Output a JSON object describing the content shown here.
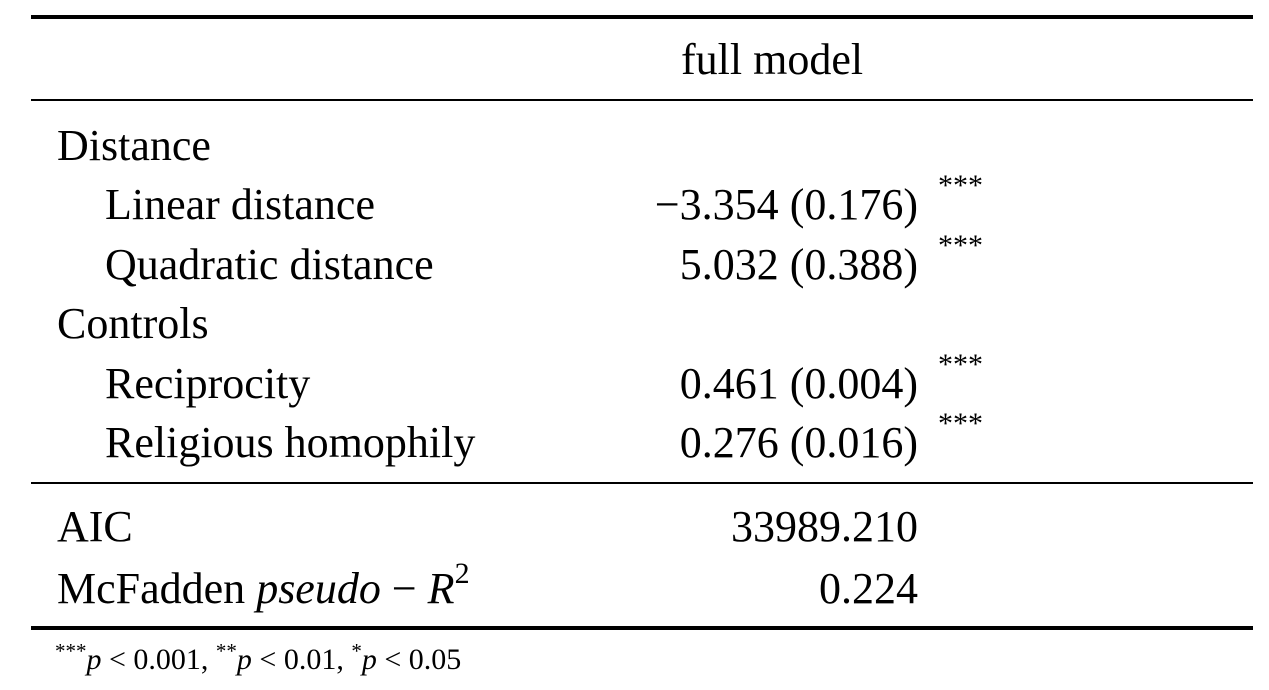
{
  "table": {
    "column_header": "full model",
    "sections": [
      {
        "label": "Distance",
        "rows": [
          {
            "label": "Linear distance",
            "estimate": "−3.354",
            "se": "(0.176)",
            "stars": "***"
          },
          {
            "label": "Quadratic distance",
            "estimate": "5.032",
            "se": "(0.388)",
            "stars": "***"
          }
        ]
      },
      {
        "label": "Controls",
        "rows": [
          {
            "label": "Reciprocity",
            "estimate": "0.461",
            "se": "(0.004)",
            "stars": "***"
          },
          {
            "label": "Religious homophily",
            "estimate": "0.276",
            "se": "(0.016)",
            "stars": "***"
          }
        ]
      }
    ],
    "stats": [
      {
        "label": "AIC",
        "value": "33989.210"
      },
      {
        "label_prefix": "McFadden ",
        "label_italic": "pseudo",
        "label_mid": " − ",
        "label_r": "R",
        "label_sup": "2",
        "value": "0.224"
      }
    ],
    "footnote": {
      "s1": "***",
      "p1": "p",
      "t1": " < 0.001, ",
      "s2": "**",
      "p2": "p",
      "t2": " < 0.01, ",
      "s3": "*",
      "p3": "p",
      "t3": " < 0.05"
    }
  }
}
